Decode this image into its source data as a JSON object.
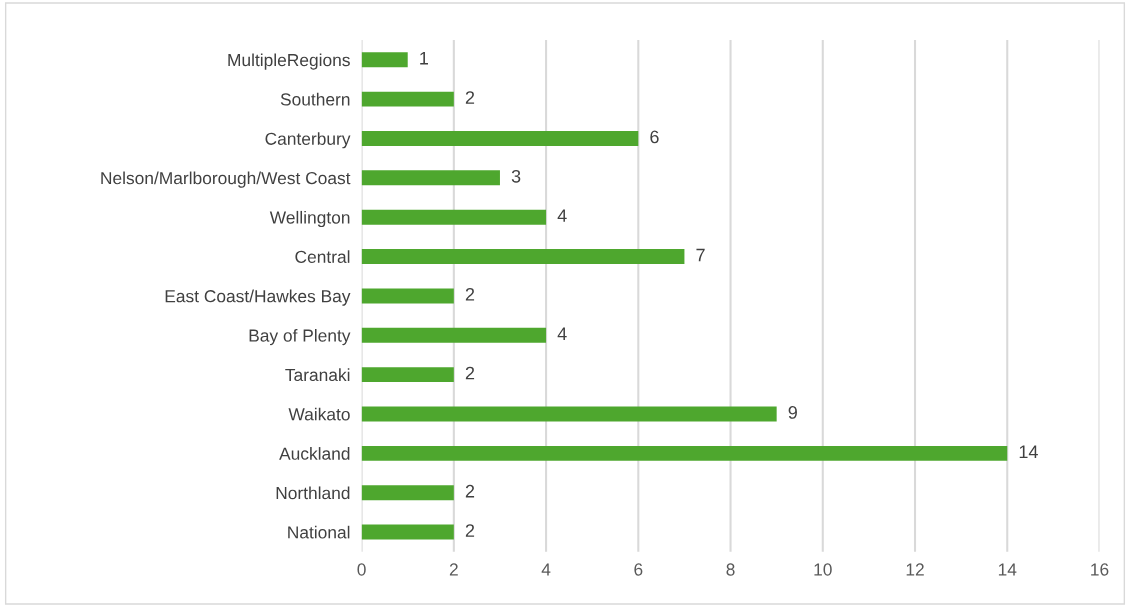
{
  "chart_data": {
    "type": "bar",
    "orientation": "horizontal",
    "categories": [
      "MultipleRegions",
      "Southern",
      "Canterbury",
      "Nelson/Marlborough/West Coast",
      "Wellington",
      "Central",
      "East Coast/Hawkes Bay",
      "Bay of Plenty",
      "Taranaki",
      "Waikato",
      "Auckland",
      "Northland",
      "National"
    ],
    "values": [
      1,
      2,
      6,
      3,
      4,
      7,
      2,
      4,
      2,
      9,
      14,
      2,
      2
    ],
    "color": "#4ea72e",
    "xlim": [
      0,
      16
    ],
    "xticks": [
      0,
      2,
      4,
      6,
      8,
      10,
      12,
      14,
      16
    ],
    "grid": "x",
    "data_labels": true
  }
}
